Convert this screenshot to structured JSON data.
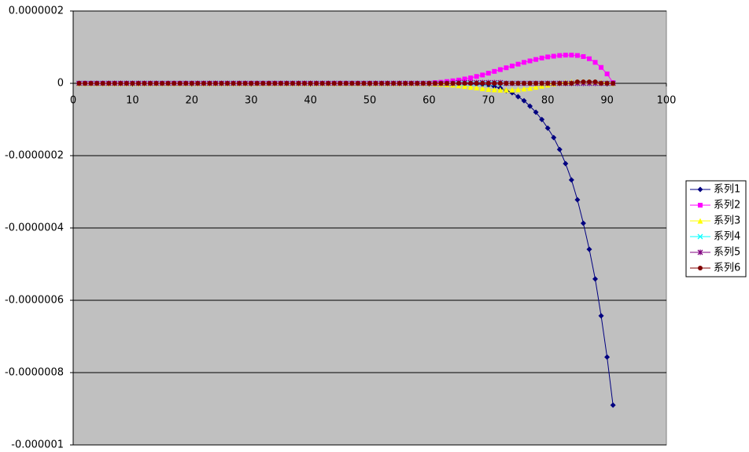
{
  "chart_data": {
    "type": "line",
    "x": [
      1,
      2,
      3,
      4,
      5,
      6,
      7,
      8,
      9,
      10,
      11,
      12,
      13,
      14,
      15,
      16,
      17,
      18,
      19,
      20,
      21,
      22,
      23,
      24,
      25,
      26,
      27,
      28,
      29,
      30,
      31,
      32,
      33,
      34,
      35,
      36,
      37,
      38,
      39,
      40,
      41,
      42,
      43,
      44,
      45,
      46,
      47,
      48,
      49,
      50,
      51,
      52,
      53,
      54,
      55,
      56,
      57,
      58,
      59,
      60,
      61,
      62,
      63,
      64,
      65,
      66,
      67,
      68,
      69,
      70,
      71,
      72,
      73,
      74,
      75,
      76,
      77,
      78,
      79,
      80,
      81,
      82,
      83,
      84,
      85,
      86,
      87,
      88,
      89,
      90,
      91
    ],
    "series": [
      {
        "name": "系列1",
        "color": "#000080",
        "marker": "diamond",
        "values": [
          0,
          0,
          0,
          0,
          0,
          0,
          0,
          0,
          0,
          0,
          0,
          0,
          0,
          0,
          0,
          0,
          0,
          0,
          0,
          0,
          0,
          0,
          0,
          0,
          0,
          0,
          0,
          0,
          0,
          0,
          0,
          0,
          0,
          0,
          0,
          0,
          0,
          0,
          0,
          0,
          0,
          0,
          0,
          0,
          0,
          0,
          0,
          0,
          0,
          0,
          0,
          0,
          0,
          0,
          0,
          0,
          0,
          0,
          0,
          0,
          0,
          0,
          0,
          0,
          0,
          0,
          -1e-09,
          -2e-09,
          -3e-09,
          -5e-09,
          -9e-09,
          -1.3e-08,
          -2e-08,
          -2.6e-08,
          -3.7e-08,
          -4.8e-08,
          -6.3e-08,
          -8e-08,
          -1e-07,
          -1.24e-07,
          -1.5e-07,
          -1.83e-07,
          -2.22e-07,
          -2.67e-07,
          -3.22e-07,
          -3.87e-07,
          -4.59e-07,
          -5.41e-07,
          -6.43e-07,
          -7.57e-07,
          -8.9e-07
        ]
      },
      {
        "name": "系列2",
        "color": "#ff00ff",
        "marker": "square",
        "values": [
          0,
          0,
          0,
          0,
          0,
          0,
          0,
          0,
          0,
          0,
          0,
          0,
          0,
          0,
          0,
          0,
          0,
          0,
          0,
          0,
          0,
          0,
          0,
          0,
          0,
          0,
          0,
          0,
          0,
          0,
          0,
          0,
          0,
          0,
          0,
          0,
          0,
          0,
          0,
          0,
          0,
          0,
          0,
          0,
          0,
          0,
          0,
          0,
          0,
          0,
          0,
          0,
          0,
          0,
          0,
          0,
          0,
          0,
          0,
          0,
          2e-09,
          3e-09,
          5e-09,
          7e-09,
          9e-09,
          1.2e-08,
          1.5e-08,
          1.9e-08,
          2.3e-08,
          2.8e-08,
          3.3e-08,
          3.8e-08,
          4.3e-08,
          4.8e-08,
          5.3e-08,
          5.8e-08,
          6.2e-08,
          6.6e-08,
          7e-08,
          7.3e-08,
          7.5e-08,
          7.7e-08,
          7.8e-08,
          7.8e-08,
          7.7e-08,
          7.4e-08,
          6.8e-08,
          5.8e-08,
          4.4e-08,
          2.6e-08,
          2e-09
        ]
      },
      {
        "name": "系列3",
        "color": "#ffff00",
        "marker": "triangle",
        "values": [
          0,
          0,
          0,
          0,
          0,
          0,
          0,
          0,
          0,
          0,
          0,
          0,
          0,
          0,
          0,
          0,
          0,
          0,
          0,
          0,
          0,
          0,
          0,
          0,
          0,
          0,
          0,
          0,
          0,
          0,
          0,
          0,
          0,
          0,
          0,
          0,
          0,
          0,
          0,
          0,
          0,
          0,
          0,
          0,
          0,
          0,
          0,
          0,
          0,
          0,
          0,
          0,
          0,
          0,
          0,
          0,
          0,
          0,
          0,
          0,
          -1e-09,
          -2e-09,
          -3e-09,
          -4e-09,
          -6e-09,
          -8e-09,
          -1e-08,
          -1.2e-08,
          -1.4e-08,
          -1.6e-08,
          -1.7e-08,
          -1.8e-08,
          -1.8e-08,
          -1.8e-08,
          -1.7e-08,
          -1.5e-08,
          -1.3e-08,
          -1e-08,
          -7e-09,
          -4e-09,
          -1e-09,
          1e-09,
          3e-09,
          4e-09,
          5e-09,
          5e-09,
          5e-09,
          4e-09,
          3e-09,
          2e-09,
          0
        ]
      },
      {
        "name": "系列4",
        "color": "#00ffff",
        "marker": "x",
        "values": [
          0,
          0,
          0,
          0,
          0,
          0,
          0,
          0,
          0,
          0,
          0,
          0,
          0,
          0,
          0,
          0,
          0,
          0,
          0,
          0,
          0,
          0,
          0,
          0,
          0,
          0,
          0,
          0,
          0,
          0,
          0,
          0,
          0,
          0,
          0,
          0,
          0,
          0,
          0,
          0,
          0,
          0,
          0,
          0,
          0,
          0,
          0,
          0,
          0,
          0,
          0,
          0,
          0,
          0,
          0,
          0,
          0,
          0,
          0,
          0,
          0,
          0,
          0,
          0,
          0,
          0,
          0,
          0,
          0,
          0,
          0,
          0,
          0,
          0,
          0,
          0,
          0,
          0,
          0,
          0,
          0,
          0,
          0,
          0,
          0,
          0,
          0,
          0,
          0,
          0,
          0
        ]
      },
      {
        "name": "系列5",
        "color": "#800080",
        "marker": "star",
        "values": [
          0,
          0,
          0,
          0,
          0,
          0,
          0,
          0,
          0,
          0,
          0,
          0,
          0,
          0,
          0,
          0,
          0,
          0,
          0,
          0,
          0,
          0,
          0,
          0,
          0,
          0,
          0,
          0,
          0,
          0,
          0,
          0,
          0,
          0,
          0,
          0,
          0,
          0,
          0,
          0,
          0,
          0,
          0,
          0,
          0,
          0,
          0,
          0,
          0,
          0,
          0,
          0,
          0,
          0,
          0,
          0,
          0,
          0,
          0,
          0,
          0,
          0,
          0,
          0,
          2e-09,
          2e-09,
          2e-09,
          2e-09,
          2e-09,
          2e-09,
          2e-09,
          2e-09,
          0,
          0,
          0,
          0,
          0,
          0,
          0,
          0,
          0,
          0,
          0,
          0,
          0,
          0,
          0,
          0,
          0,
          0,
          0
        ]
      },
      {
        "name": "系列6",
        "color": "#800000",
        "marker": "circle",
        "values": [
          0,
          0,
          0,
          0,
          0,
          0,
          0,
          0,
          0,
          0,
          0,
          0,
          0,
          0,
          0,
          0,
          0,
          0,
          0,
          0,
          0,
          0,
          0,
          0,
          0,
          0,
          0,
          0,
          0,
          0,
          0,
          0,
          0,
          0,
          0,
          0,
          0,
          0,
          0,
          0,
          0,
          0,
          0,
          0,
          0,
          0,
          0,
          0,
          0,
          0,
          0,
          0,
          0,
          0,
          0,
          0,
          0,
          0,
          0,
          0,
          0,
          0,
          0,
          0,
          0,
          0,
          0,
          0,
          0,
          0,
          0,
          0,
          0,
          0,
          0,
          0,
          0,
          0,
          0,
          0,
          0,
          0,
          0,
          0,
          4e-09,
          4e-09,
          4e-09,
          4e-09,
          0,
          0,
          0
        ]
      }
    ],
    "xlim": [
      0,
      100
    ],
    "xticks": [
      0,
      10,
      20,
      30,
      40,
      50,
      60,
      70,
      80,
      90,
      100
    ],
    "ylim": [
      -1e-06,
      2e-07
    ],
    "yticks": [
      {
        "value": 2e-07,
        "label": "0.0000002"
      },
      0,
      {
        "value": -2e-07,
        "label": "-0.0000002"
      },
      {
        "value": -4e-07,
        "label": "-0.0000004"
      },
      {
        "value": -6e-07,
        "label": "-0.0000006"
      },
      {
        "value": -8e-07,
        "label": "-0.0000008"
      },
      {
        "value": -1e-06,
        "label": "-0.000001"
      }
    ],
    "grid": true,
    "legend": "right",
    "plot_background": "#c0c0c0"
  }
}
